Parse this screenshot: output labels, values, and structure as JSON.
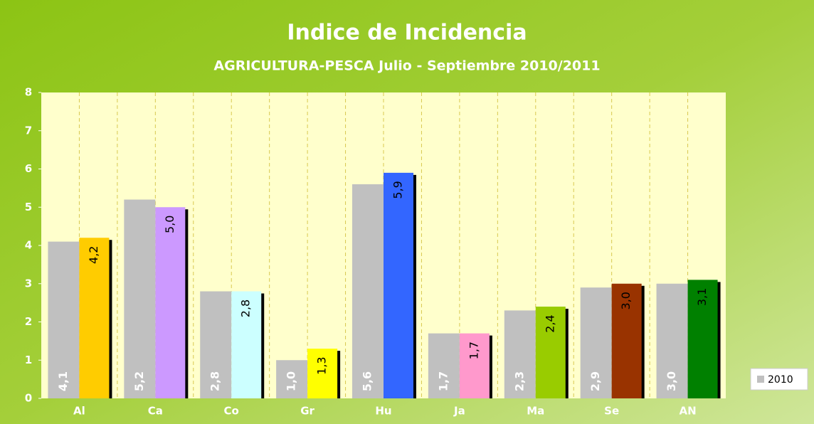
{
  "chart_data": {
    "type": "bar",
    "title": "Indice de Incidencia",
    "subtitle": "AGRICULTURA-PESCA Julio - Septiembre 2010/2011",
    "categories": [
      "Al",
      "Ca",
      "Co",
      "Gr",
      "Hu",
      "Ja",
      "Ma",
      "Se",
      "AN"
    ],
    "series": [
      {
        "name": "2010",
        "color": "#c0c0c0",
        "values": [
          4.1,
          5.2,
          2.8,
          1.0,
          5.6,
          1.7,
          2.3,
          2.9,
          3.0
        ],
        "value_labels": [
          "4,1",
          "5,2",
          "2,8",
          "1,0",
          "5,6",
          "1,7",
          "2,3",
          "2,9",
          "3,0"
        ]
      },
      {
        "colors": [
          "#ffcc00",
          "#cc99ff",
          "#ccffff",
          "#ffff00",
          "#3366ff",
          "#ff99cc",
          "#99cc00",
          "#993300",
          "#008000"
        ],
        "values": [
          4.2,
          5.0,
          2.8,
          1.3,
          5.9,
          1.7,
          2.4,
          3.0,
          3.1
        ],
        "value_labels": [
          "4,2",
          "5,0",
          "2,8",
          "1,3",
          "5,9",
          "1,7",
          "2,4",
          "3,0",
          "3,1"
        ]
      }
    ],
    "ylim": [
      0,
      8
    ],
    "yticks": [
      0,
      1,
      2,
      3,
      4,
      5,
      6,
      7,
      8
    ],
    "legend": "right"
  }
}
